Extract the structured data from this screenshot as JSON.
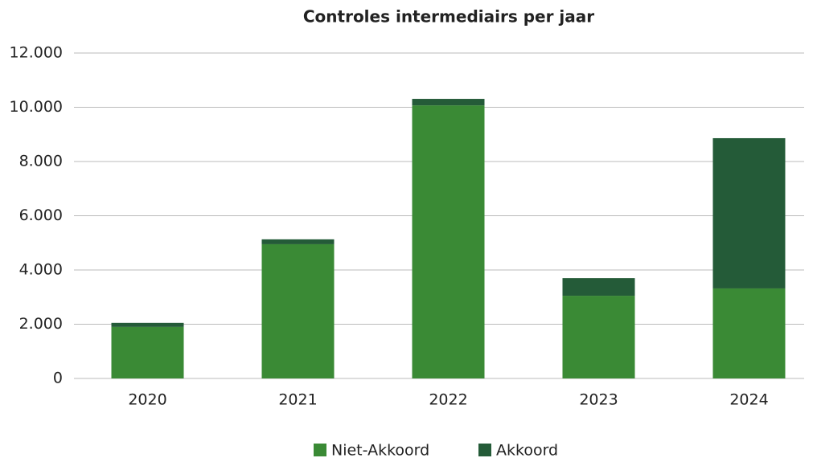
{
  "chart_data": {
    "type": "stacked_bar",
    "title": "Controles intermediairs per jaar",
    "categories": [
      "2020",
      "2021",
      "2022",
      "2023",
      "2024"
    ],
    "series": [
      {
        "name": "Niet-Akkoord",
        "color": "#3a8a35",
        "values": [
          1900,
          4950,
          10070,
          3050,
          3320
        ]
      },
      {
        "name": "Akkoord",
        "color": "#245b38",
        "values": [
          150,
          180,
          240,
          650,
          5540
        ]
      }
    ],
    "ylim": [
      0,
      12000
    ],
    "yticks": [
      0,
      {
        "value": 2000,
        "label": "2.000"
      },
      {
        "value": 4000,
        "label": "4.000"
      },
      {
        "value": 6000,
        "label": "6.000"
      },
      {
        "value": 8000,
        "label": "8.000"
      },
      {
        "value": 10000,
        "label": "10.000"
      },
      {
        "value": 12000,
        "label": "12.000"
      }
    ],
    "grid": true,
    "legend": "bottom"
  }
}
